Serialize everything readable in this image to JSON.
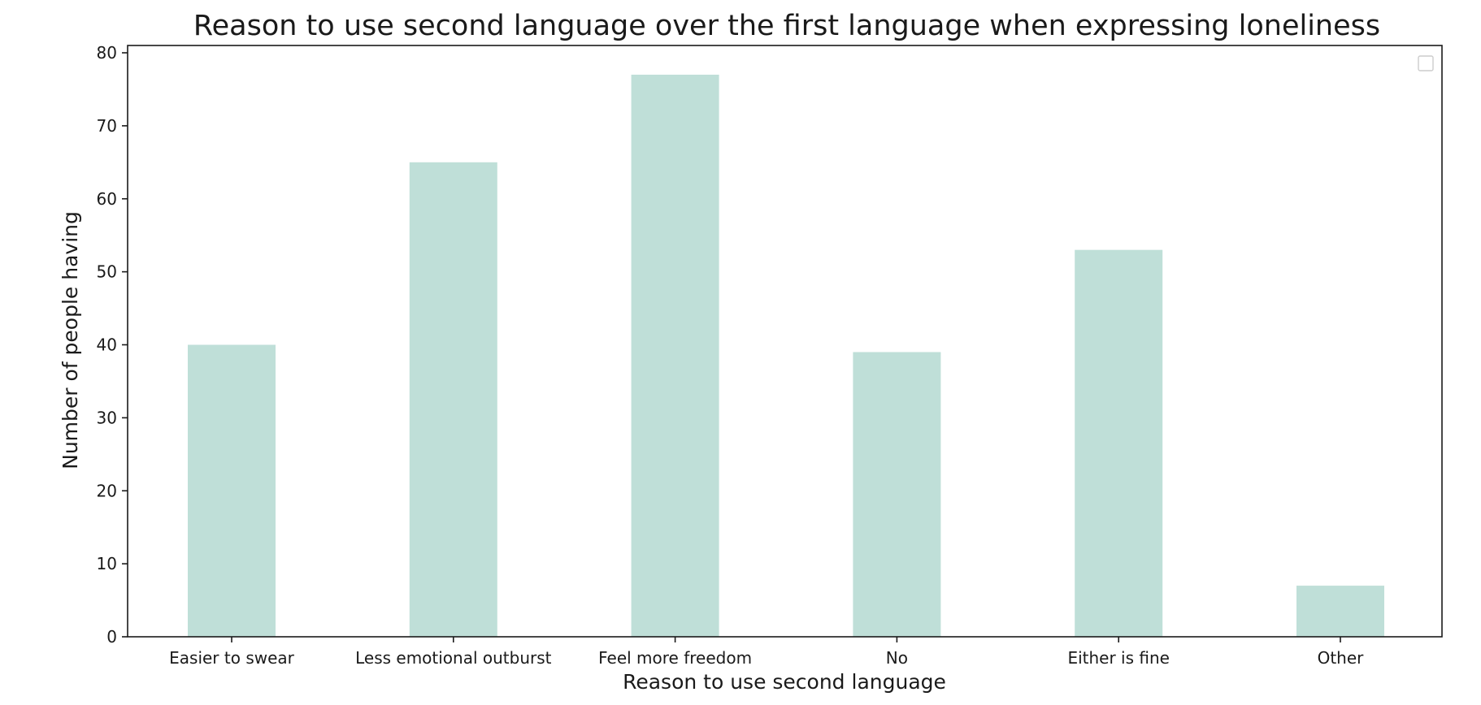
{
  "chart_data": {
    "type": "bar",
    "title": "Reason to use second language over the first language when expressing loneliness",
    "xlabel": "Reason to use second language",
    "ylabel": "Number of people having",
    "categories": [
      "Easier to swear",
      "Less emotional outburst",
      "Feel more freedom",
      "No",
      "Either is fine",
      "Other"
    ],
    "values": [
      40,
      65,
      77,
      39,
      53,
      7
    ],
    "ylim": [
      0,
      80
    ],
    "yticks": [
      0,
      10,
      20,
      30,
      40,
      50,
      60,
      70,
      80
    ],
    "bar_color": "#bfdfd8",
    "grid": false,
    "legend": "top-right (empty)"
  }
}
